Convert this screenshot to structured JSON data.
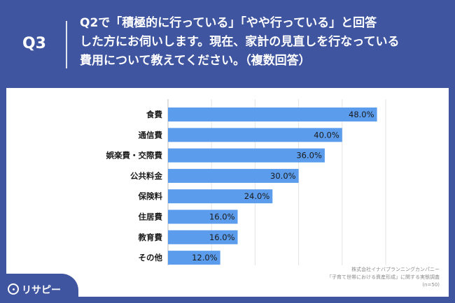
{
  "header": {
    "q_label": "Q3",
    "question_lines": [
      "Q2で「積極的に行っている」「やや行っている」と回答",
      "した方にお伺いします。現在、家計の見直しを行なっている",
      "費用について教えてください。（複数回答）"
    ]
  },
  "chart_data": {
    "type": "bar",
    "orientation": "horizontal",
    "title": "",
    "xlabel": "",
    "ylabel": "",
    "categories": [
      "食費",
      "通信費",
      "娯楽費・交際費",
      "公共料金",
      "保険料",
      "住居費",
      "教育費",
      "その他"
    ],
    "values": [
      48.0,
      40.0,
      36.0,
      30.0,
      24.0,
      16.0,
      16.0,
      12.0
    ],
    "value_labels": [
      "48.0%",
      "40.0%",
      "36.0%",
      "30.0%",
      "24.0%",
      "16.0%",
      "16.0%",
      "12.0%"
    ],
    "xlim": [
      0,
      50
    ],
    "grid": true,
    "bar_color": "#5b9cec"
  },
  "source": {
    "line1": "株式会社イナバプランニングカンパニー",
    "line2": "「子育て世帯における資産形成」に関する実態調査",
    "line3": "(n=50)"
  },
  "brand": {
    "logo_text": "リサピー",
    "primary_color": "#3f55a0"
  }
}
